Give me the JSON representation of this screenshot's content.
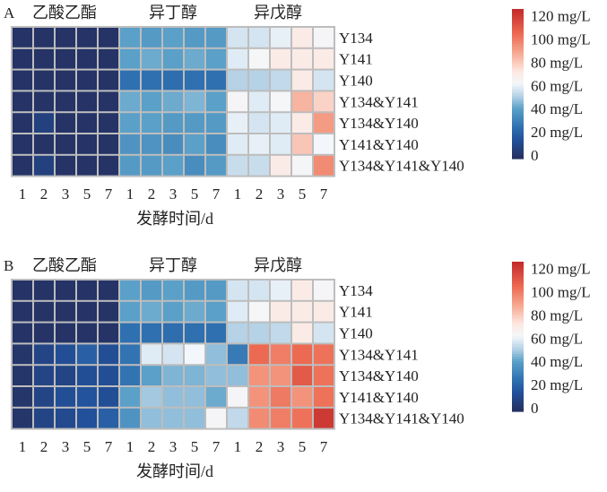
{
  "chart_data": [
    {
      "type": "heatmap",
      "panel_label": "A",
      "group_labels": [
        "乙酸乙酯",
        "异丁醇",
        "异戊醇"
      ],
      "x_ticks": [
        "1",
        "2",
        "3",
        "5",
        "7"
      ],
      "xlabel": "发酵时间/d",
      "rows": [
        "Y134",
        "Y141",
        "Y140",
        "Y134&Y141",
        "Y134&Y140",
        "Y141&Y140",
        "Y134&Y141&Y140"
      ],
      "values": [
        [
          2,
          2,
          2,
          2,
          2,
          40,
          38,
          40,
          38,
          38,
          55,
          55,
          58,
          68,
          62
        ],
        [
          2,
          2,
          2,
          2,
          2,
          40,
          42,
          40,
          42,
          40,
          57,
          61,
          68,
          68,
          68
        ],
        [
          2,
          2,
          2,
          2,
          2,
          25,
          25,
          24,
          25,
          25,
          50,
          50,
          52,
          68,
          55
        ],
        [
          2,
          2,
          2,
          2,
          2,
          42,
          40,
          42,
          44,
          40,
          62,
          57,
          61,
          82,
          75
        ],
        [
          2,
          8,
          2,
          2,
          2,
          40,
          40,
          38,
          38,
          38,
          58,
          55,
          57,
          68,
          88
        ],
        [
          2,
          2,
          2,
          2,
          2,
          36,
          36,
          34,
          40,
          34,
          57,
          58,
          57,
          78,
          60
        ],
        [
          2,
          8,
          2,
          2,
          2,
          38,
          38,
          40,
          34,
          38,
          53,
          53,
          68,
          62,
          92
        ]
      ],
      "colorbar": {
        "ticks": [
          "0",
          "20 mg/L",
          "40 mg/L",
          "60 mg/L",
          "80 mg/L",
          "100 mg/L",
          "120 mg/L"
        ],
        "range": [
          0,
          120
        ]
      }
    },
    {
      "type": "heatmap",
      "panel_label": "B",
      "group_labels": [
        "乙酸乙酯",
        "异丁醇",
        "异戊醇"
      ],
      "x_ticks": [
        "1",
        "2",
        "3",
        "5",
        "7"
      ],
      "xlabel": "发酵时间/d",
      "rows": [
        "Y134",
        "Y141",
        "Y140",
        "Y134&Y141",
        "Y134&Y140",
        "Y141&Y140",
        "Y134&Y141&Y140"
      ],
      "values": [
        [
          2,
          2,
          2,
          2,
          2,
          40,
          38,
          40,
          38,
          38,
          55,
          55,
          58,
          68,
          62
        ],
        [
          2,
          2,
          2,
          2,
          2,
          40,
          42,
          40,
          42,
          40,
          57,
          61,
          68,
          68,
          68
        ],
        [
          2,
          2,
          2,
          2,
          2,
          25,
          25,
          24,
          25,
          25,
          50,
          50,
          52,
          68,
          55
        ],
        [
          3,
          10,
          14,
          20,
          14,
          26,
          57,
          55,
          60,
          46,
          28,
          100,
          95,
          100,
          98
        ],
        [
          3,
          10,
          10,
          14,
          14,
          26,
          40,
          44,
          44,
          46,
          46,
          90,
          90,
          105,
          98
        ],
        [
          3,
          10,
          14,
          16,
          14,
          40,
          48,
          46,
          46,
          42,
          62,
          90,
          96,
          90,
          98
        ],
        [
          3,
          10,
          12,
          15,
          20,
          36,
          46,
          46,
          46,
          62,
          52,
          92,
          95,
          98,
          115
        ]
      ],
      "colorbar": {
        "ticks": [
          "0",
          "20 mg/L",
          "40 mg/L",
          "60 mg/L",
          "80 mg/L",
          "100 mg/L",
          "120 mg/L"
        ],
        "range": [
          0,
          120
        ]
      }
    }
  ]
}
